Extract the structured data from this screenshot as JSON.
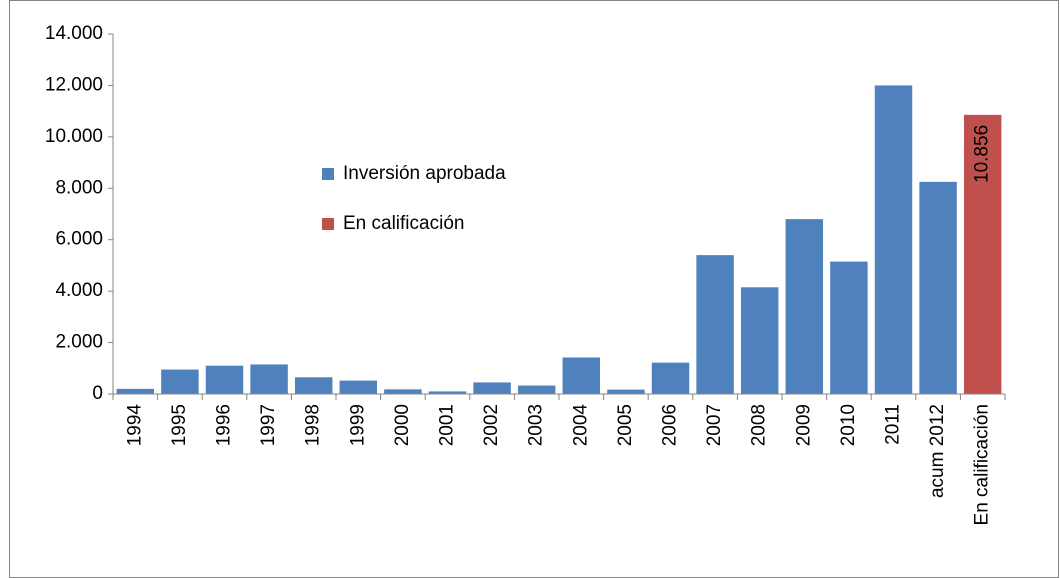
{
  "chart_data": {
    "type": "bar",
    "categories": [
      "1994",
      "1995",
      "1996",
      "1997",
      "1998",
      "1999",
      "2000",
      "2001",
      "2002",
      "2003",
      "2004",
      "2005",
      "2006",
      "2007",
      "2008",
      "2009",
      "2010",
      "2011",
      "acum 2012",
      "En calificación"
    ],
    "series": [
      {
        "name": "Inversión aprobada",
        "color": "#4f81bd",
        "values": [
          200,
          950,
          1100,
          1150,
          650,
          520,
          180,
          100,
          450,
          330,
          1420,
          170,
          1220,
          5400,
          4150,
          6800,
          5150,
          12000,
          8250,
          null
        ]
      },
      {
        "name": "En calificación",
        "color": "#c0504d",
        "values": [
          null,
          null,
          null,
          null,
          null,
          null,
          null,
          null,
          null,
          null,
          null,
          null,
          null,
          null,
          null,
          null,
          null,
          null,
          null,
          10856
        ],
        "value_labels": [
          null,
          null,
          null,
          null,
          null,
          null,
          null,
          null,
          null,
          null,
          null,
          null,
          null,
          null,
          null,
          null,
          null,
          null,
          null,
          "10.856"
        ]
      }
    ],
    "ylim": [
      0,
      14000
    ],
    "yticks": [
      0,
      {
        "value": 2000,
        "label": "2.000"
      },
      {
        "value": 4000,
        "label": "4.000"
      },
      {
        "value": 6000,
        "label": "6.000"
      },
      {
        "value": 8000,
        "label": "8.000"
      },
      {
        "value": 10000,
        "label": "10.000"
      },
      {
        "value": 12000,
        "label": "12.000"
      },
      {
        "value": 14000,
        "label": "14.000"
      }
    ],
    "grid": false,
    "legend": "center"
  }
}
